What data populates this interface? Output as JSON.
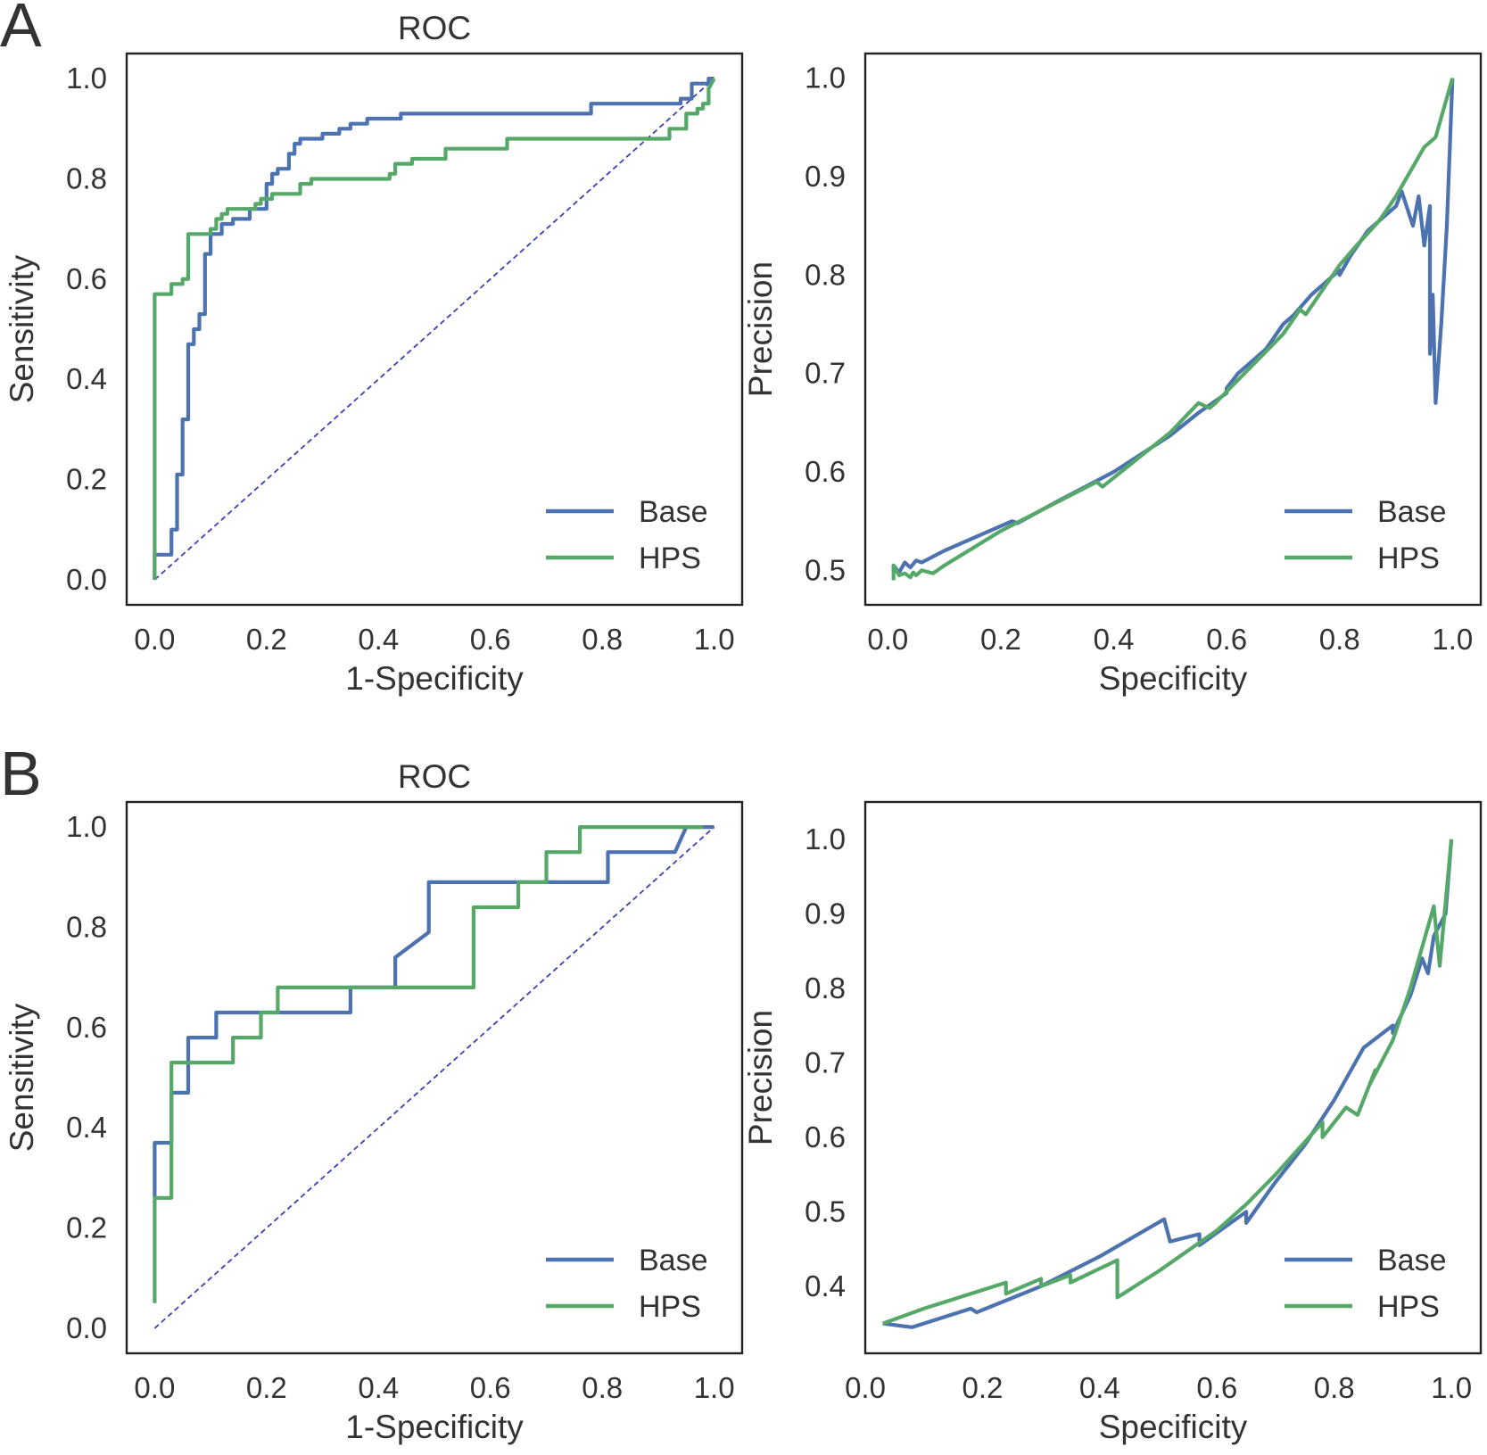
{
  "panel_labels": {
    "a": "A",
    "b": "B"
  },
  "colors": {
    "base": "#4c72b0",
    "hps": "#55a868",
    "diagonal": "#3f3fb5"
  },
  "chart_data": [
    {
      "id": "a-roc",
      "type": "line",
      "title": "ROC",
      "xlabel": "1-Specificity",
      "ylabel": "Sensitivity",
      "xlim": [
        -0.05,
        1.05
      ],
      "ylim": [
        -0.05,
        1.05
      ],
      "xticks": [
        "0.0",
        "0.2",
        "0.4",
        "0.6",
        "0.8",
        "1.0"
      ],
      "yticks": [
        "0.0",
        "0.2",
        "0.4",
        "0.6",
        "0.8",
        "1.0"
      ],
      "grid": false,
      "legend": {
        "position": "lower-right",
        "entries": [
          "Base",
          "HPS"
        ]
      },
      "diagonal": true,
      "series": [
        {
          "name": "Base",
          "color_key": "base",
          "x": [
            0,
            0,
            0.03,
            0.03,
            0.04,
            0.04,
            0.05,
            0.05,
            0.06,
            0.06,
            0.07,
            0.07,
            0.08,
            0.08,
            0.09,
            0.09,
            0.1,
            0.1,
            0.12,
            0.12,
            0.14,
            0.14,
            0.17,
            0.17,
            0.2,
            0.2,
            0.21,
            0.21,
            0.22,
            0.22,
            0.24,
            0.24,
            0.25,
            0.25,
            0.26,
            0.26,
            0.3,
            0.3,
            0.33,
            0.33,
            0.35,
            0.35,
            0.38,
            0.38,
            0.44,
            0.44,
            0.78,
            0.78,
            0.94,
            0.94,
            0.96,
            0.96,
            0.99,
            0.99,
            1.0
          ],
          "y": [
            0,
            0.05,
            0.05,
            0.1,
            0.1,
            0.21,
            0.21,
            0.32,
            0.32,
            0.47,
            0.47,
            0.5,
            0.5,
            0.53,
            0.53,
            0.65,
            0.65,
            0.69,
            0.69,
            0.71,
            0.71,
            0.72,
            0.72,
            0.74,
            0.74,
            0.79,
            0.79,
            0.81,
            0.81,
            0.82,
            0.82,
            0.85,
            0.85,
            0.87,
            0.87,
            0.88,
            0.88,
            0.89,
            0.89,
            0.9,
            0.9,
            0.91,
            0.91,
            0.92,
            0.92,
            0.93,
            0.93,
            0.95,
            0.95,
            0.96,
            0.96,
            0.99,
            0.99,
            1.0,
            1.0
          ]
        },
        {
          "name": "HPS",
          "color_key": "hps",
          "x": [
            0,
            0,
            0.03,
            0.03,
            0.05,
            0.05,
            0.06,
            0.06,
            0.1,
            0.1,
            0.11,
            0.11,
            0.12,
            0.12,
            0.13,
            0.13,
            0.18,
            0.18,
            0.19,
            0.19,
            0.21,
            0.21,
            0.26,
            0.26,
            0.28,
            0.28,
            0.42,
            0.42,
            0.43,
            0.43,
            0.46,
            0.46,
            0.52,
            0.52,
            0.63,
            0.63,
            0.92,
            0.92,
            0.95,
            0.95,
            0.97,
            0.97,
            0.98,
            0.98,
            0.99,
            0.99,
            1.0
          ],
          "y": [
            0,
            0.57,
            0.57,
            0.59,
            0.59,
            0.6,
            0.6,
            0.69,
            0.69,
            0.7,
            0.7,
            0.72,
            0.72,
            0.73,
            0.73,
            0.74,
            0.74,
            0.75,
            0.75,
            0.76,
            0.76,
            0.77,
            0.77,
            0.79,
            0.79,
            0.8,
            0.8,
            0.81,
            0.81,
            0.83,
            0.83,
            0.84,
            0.84,
            0.86,
            0.86,
            0.88,
            0.88,
            0.9,
            0.9,
            0.93,
            0.93,
            0.94,
            0.94,
            0.95,
            0.95,
            0.98,
            1.0
          ]
        }
      ]
    },
    {
      "id": "a-pr",
      "type": "line",
      "title": "",
      "xlabel": "Specificity",
      "ylabel": "Precision",
      "xlim": [
        -0.04,
        1.05
      ],
      "ylim": [
        0.465,
        1.025
      ],
      "xticks": [
        "0.0",
        "0.2",
        "0.4",
        "0.6",
        "0.8",
        "1.0"
      ],
      "yticks": [
        "0.5",
        "0.6",
        "0.7",
        "0.8",
        "0.9",
        "1.0"
      ],
      "grid": false,
      "legend": {
        "position": "lower-right",
        "entries": [
          "Base",
          "HPS"
        ]
      },
      "diagonal": false,
      "series": [
        {
          "name": "Base",
          "color_key": "base",
          "x": [
            0.01,
            0.01,
            0.02,
            0.03,
            0.04,
            0.05,
            0.06,
            0.1,
            0.2,
            0.22,
            0.23,
            0.3,
            0.4,
            0.5,
            0.55,
            0.6,
            0.6,
            0.62,
            0.67,
            0.7,
            0.72,
            0.75,
            0.77,
            0.8,
            0.8,
            0.82,
            0.85,
            0.9,
            0.91,
            0.93,
            0.94,
            0.95,
            0.96,
            0.96,
            0.965,
            0.97,
            0.98,
            0.99,
            1.0
          ],
          "y": [
            0.5,
            0.505,
            0.498,
            0.508,
            0.503,
            0.51,
            0.508,
            0.52,
            0.545,
            0.55,
            0.548,
            0.57,
            0.6,
            0.637,
            0.66,
            0.68,
            0.685,
            0.7,
            0.725,
            0.75,
            0.76,
            0.78,
            0.79,
            0.805,
            0.8,
            0.82,
            0.845,
            0.87,
            0.885,
            0.85,
            0.88,
            0.83,
            0.87,
            0.72,
            0.78,
            0.67,
            0.75,
            0.85,
            1.0
          ]
        },
        {
          "name": "HPS",
          "color_key": "hps",
          "x": [
            0.01,
            0.01,
            0.02,
            0.03,
            0.04,
            0.045,
            0.05,
            0.06,
            0.08,
            0.1,
            0.2,
            0.37,
            0.38,
            0.5,
            0.55,
            0.57,
            0.58,
            0.7,
            0.73,
            0.74,
            0.8,
            0.83,
            0.87,
            0.9,
            0.92,
            0.95,
            0.97,
            1.0
          ],
          "y": [
            0.49,
            0.505,
            0.495,
            0.497,
            0.493,
            0.498,
            0.495,
            0.5,
            0.497,
            0.505,
            0.54,
            0.59,
            0.585,
            0.64,
            0.67,
            0.665,
            0.67,
            0.74,
            0.765,
            0.76,
            0.81,
            0.83,
            0.855,
            0.88,
            0.9,
            0.93,
            0.94,
            1.0
          ]
        }
      ]
    },
    {
      "id": "b-roc",
      "type": "line",
      "title": "ROC",
      "xlabel": "1-Specificity",
      "ylabel": "Sensitivity",
      "xlim": [
        -0.05,
        1.05
      ],
      "ylim": [
        -0.05,
        1.05
      ],
      "xticks": [
        "0.0",
        "0.2",
        "0.4",
        "0.6",
        "0.8",
        "1.0"
      ],
      "yticks": [
        "0.0",
        "0.2",
        "0.4",
        "0.6",
        "0.8",
        "1.0"
      ],
      "grid": false,
      "legend": {
        "position": "lower-right",
        "entries": [
          "Base",
          "HPS"
        ]
      },
      "diagonal": true,
      "series": [
        {
          "name": "Base",
          "color_key": "base",
          "x": [
            0,
            0,
            0.03,
            0.03,
            0.06,
            0.06,
            0.11,
            0.11,
            0.35,
            0.35,
            0.43,
            0.43,
            0.49,
            0.49,
            0.81,
            0.81,
            0.93,
            0.95,
            1.0
          ],
          "y": [
            0.26,
            0.37,
            0.37,
            0.47,
            0.47,
            0.58,
            0.58,
            0.63,
            0.63,
            0.68,
            0.68,
            0.74,
            0.79,
            0.89,
            0.89,
            0.95,
            0.95,
            1.0,
            1.0
          ],
          "line": "linear"
        },
        {
          "name": "HPS",
          "color_key": "hps",
          "x": [
            0,
            0,
            0.03,
            0.03,
            0.14,
            0.14,
            0.19,
            0.19,
            0.22,
            0.22,
            0.57,
            0.57,
            0.65,
            0.65,
            0.7,
            0.7,
            0.76,
            0.76,
            0.98
          ],
          "y": [
            0.05,
            0.26,
            0.26,
            0.53,
            0.53,
            0.58,
            0.58,
            0.63,
            0.63,
            0.68,
            0.68,
            0.84,
            0.84,
            0.89,
            0.89,
            0.95,
            0.95,
            1.0,
            1.0
          ]
        }
      ]
    },
    {
      "id": "b-pr",
      "type": "line",
      "title": "",
      "xlabel": "Specificity",
      "ylabel": "Precision",
      "xlim": [
        0.0,
        1.05
      ],
      "ylim": [
        0.31,
        1.05
      ],
      "xticks": [
        "0.0",
        "0.2",
        "0.4",
        "0.6",
        "0.8",
        "1.0"
      ],
      "yticks": [
        "0.4",
        "0.5",
        "0.6",
        "0.7",
        "0.8",
        "0.9",
        "1.0"
      ],
      "grid": false,
      "legend": {
        "position": "lower-right",
        "entries": [
          "Base",
          "HPS"
        ]
      },
      "diagonal": false,
      "series": [
        {
          "name": "Base",
          "color_key": "base",
          "x": [
            0.03,
            0.08,
            0.18,
            0.19,
            0.3,
            0.4,
            0.51,
            0.52,
            0.57,
            0.57,
            0.65,
            0.65,
            0.7,
            0.75,
            0.8,
            0.85,
            0.9,
            0.9,
            0.93,
            0.95,
            0.96,
            0.97,
            0.99,
            1.0
          ],
          "y": [
            0.35,
            0.345,
            0.37,
            0.365,
            0.4,
            0.44,
            0.49,
            0.46,
            0.47,
            0.455,
            0.5,
            0.485,
            0.54,
            0.59,
            0.65,
            0.72,
            0.75,
            0.74,
            0.79,
            0.84,
            0.82,
            0.87,
            0.9,
            1.0
          ]
        },
        {
          "name": "HPS",
          "color_key": "hps",
          "x": [
            0.03,
            0.1,
            0.24,
            0.24,
            0.3,
            0.3,
            0.35,
            0.35,
            0.43,
            0.43,
            0.5,
            0.6,
            0.65,
            0.7,
            0.78,
            0.78,
            0.82,
            0.84,
            0.87,
            0.86,
            0.9,
            0.93,
            0.97,
            0.98,
            1.0
          ],
          "y": [
            0.35,
            0.37,
            0.405,
            0.39,
            0.41,
            0.4,
            0.415,
            0.405,
            0.435,
            0.385,
            0.42,
            0.475,
            0.51,
            0.55,
            0.62,
            0.6,
            0.64,
            0.63,
            0.69,
            0.67,
            0.73,
            0.8,
            0.91,
            0.83,
            1.0
          ]
        }
      ]
    }
  ]
}
